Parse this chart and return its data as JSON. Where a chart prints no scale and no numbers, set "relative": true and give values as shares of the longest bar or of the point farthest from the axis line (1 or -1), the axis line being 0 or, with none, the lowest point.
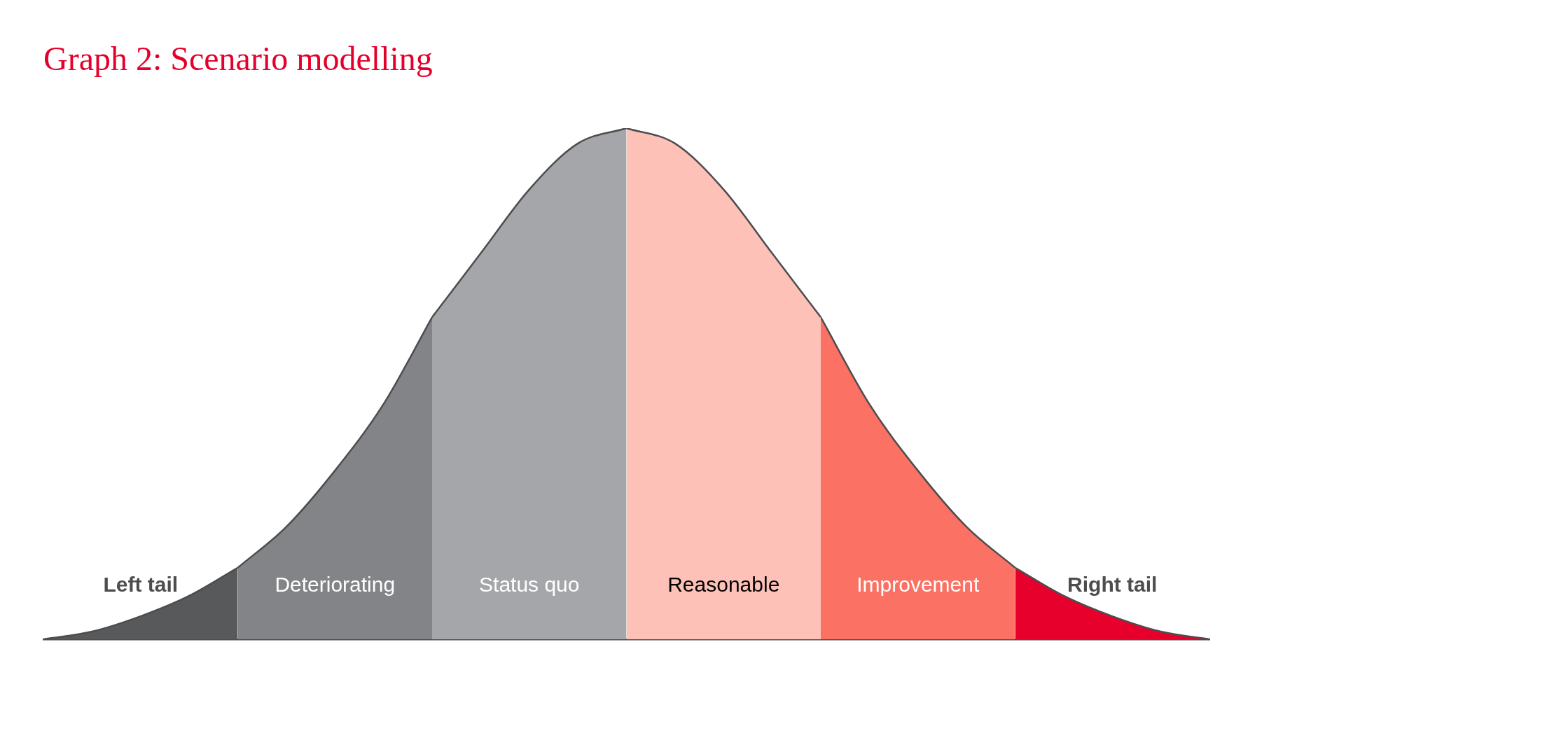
{
  "chart_data": {
    "type": "area",
    "title": "Graph 2: Scenario modelling",
    "relative": true,
    "legend": false,
    "grid": false,
    "categories": [
      null,
      null,
      null,
      null,
      null,
      null,
      null,
      null,
      null,
      null,
      null,
      null,
      null,
      null,
      null,
      null,
      null,
      null,
      null,
      null,
      null,
      null,
      null,
      null,
      null
    ],
    "series": [
      {
        "name": "Left tail",
        "color": "#58595b",
        "values": [
          0,
          0.015,
          0.045,
          0.085,
          0.14,
          null,
          null,
          null,
          null,
          null,
          null,
          null,
          null,
          null,
          null,
          null,
          null,
          null,
          null,
          null,
          null,
          null,
          null,
          null,
          null
        ]
      },
      {
        "name": "Deteriorating",
        "color": "#838487",
        "values": [
          null,
          null,
          null,
          null,
          0.14,
          0.22,
          0.33,
          0.46,
          0.63,
          null,
          null,
          null,
          null,
          null,
          null,
          null,
          null,
          null,
          null,
          null,
          null,
          null,
          null,
          null,
          null
        ]
      },
      {
        "name": "Status quo",
        "color": "#a5a6a9",
        "values": [
          null,
          null,
          null,
          null,
          null,
          null,
          null,
          null,
          0.63,
          0.755,
          0.88,
          0.97,
          1,
          null,
          null,
          null,
          null,
          null,
          null,
          null,
          null,
          null,
          null,
          null,
          null
        ]
      },
      {
        "name": "Reasonable",
        "color": "#fdc1b8",
        "values": [
          null,
          null,
          null,
          null,
          null,
          null,
          null,
          null,
          null,
          null,
          null,
          null,
          1,
          0.97,
          0.88,
          0.755,
          0.63,
          null,
          null,
          null,
          null,
          null,
          null,
          null,
          null
        ]
      },
      {
        "name": "Improvement",
        "color": "#fb7164",
        "values": [
          null,
          null,
          null,
          null,
          null,
          null,
          null,
          null,
          null,
          null,
          null,
          null,
          null,
          null,
          null,
          null,
          0.63,
          0.46,
          0.33,
          0.22,
          0.14,
          null,
          null,
          null,
          null
        ]
      },
      {
        "name": "Right tail",
        "color": "#e8002d",
        "values": [
          null,
          null,
          null,
          null,
          null,
          null,
          null,
          null,
          null,
          null,
          null,
          null,
          null,
          null,
          null,
          null,
          null,
          null,
          null,
          null,
          0.14,
          0.085,
          0.045,
          0.015,
          0
        ]
      }
    ]
  }
}
